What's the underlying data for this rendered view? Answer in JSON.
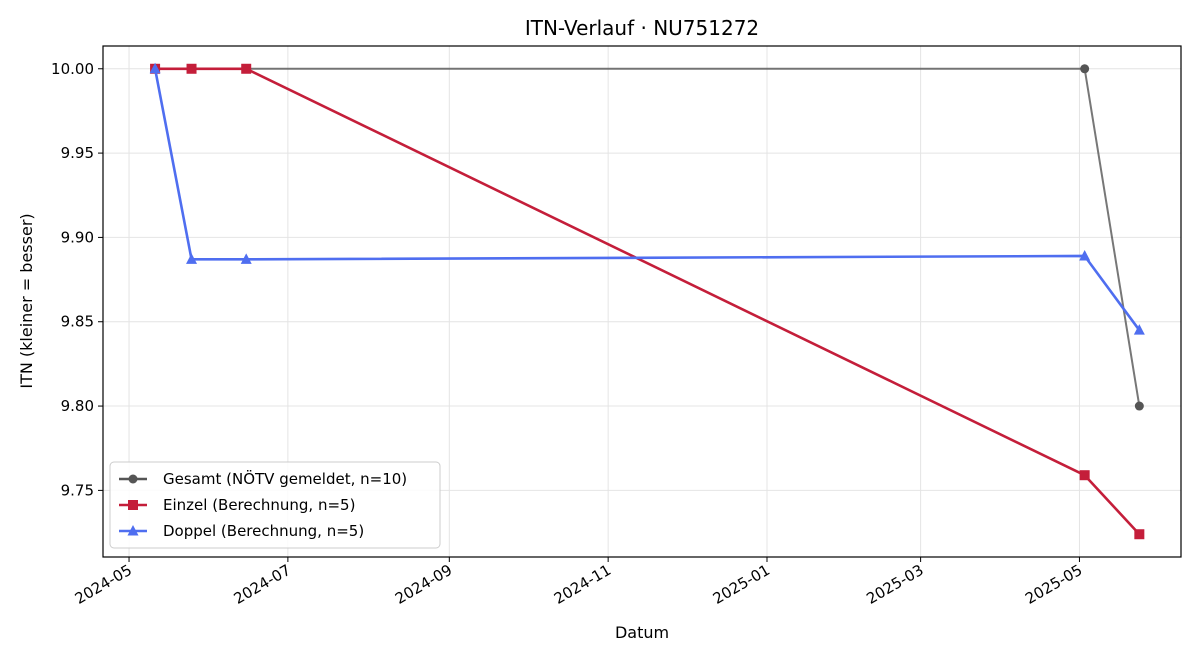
{
  "chart_data": {
    "type": "line",
    "title": "ITN-Verlauf · NU751272",
    "xlabel": "Datum",
    "ylabel": "ITN  (kleiner = besser)",
    "x_is_date": true,
    "xlim": [
      "2024-04-21",
      "2025-06-09"
    ],
    "ylim": [
      9.7105,
      10.0135
    ],
    "x_ticks": [
      "2024-05",
      "2024-07",
      "2024-09",
      "2024-11",
      "2025-01",
      "2025-03",
      "2025-05"
    ],
    "y_ticks": [
      "10.00",
      "9.95",
      "9.90",
      "9.85",
      "9.80",
      "9.75"
    ],
    "grid": true,
    "legend_position": "lower-left",
    "series": [
      {
        "name": "Gesamt (NÖTV gemeldet, n=10)",
        "color": "#555555",
        "marker": "circle",
        "x": [
          "2024-05-11",
          "2025-05-03",
          "2025-05-24"
        ],
        "y": [
          10.0,
          10.0,
          9.8
        ]
      },
      {
        "name": "Einzel (Berechnung, n=5)",
        "color": "#c41e3a",
        "marker": "square",
        "x": [
          "2024-05-11",
          "2024-05-25",
          "2024-06-15",
          "2025-05-03",
          "2025-05-24"
        ],
        "y": [
          10.0,
          10.0,
          10.0,
          9.759,
          9.724
        ]
      },
      {
        "name": "Doppel (Berechnung, n=5)",
        "color": "#4f6ef0",
        "marker": "triangle",
        "x": [
          "2024-05-11",
          "2024-05-25",
          "2024-06-15",
          "2025-05-03",
          "2025-05-24"
        ],
        "y": [
          10.0,
          9.887,
          9.887,
          9.889,
          9.845
        ]
      }
    ]
  }
}
